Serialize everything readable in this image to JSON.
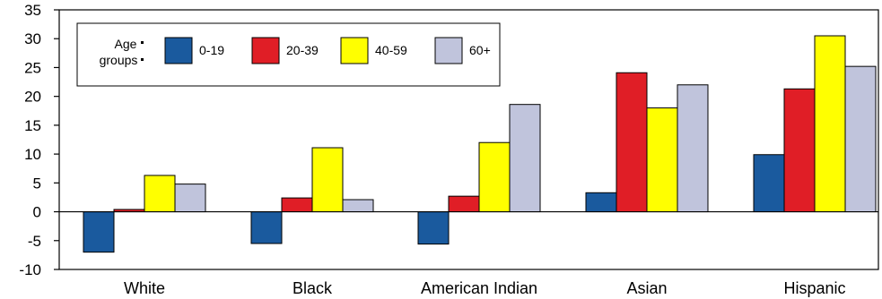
{
  "chart_data": {
    "type": "bar",
    "categories": [
      "White",
      "Black",
      "American Indian",
      "Asian",
      "Hispanic"
    ],
    "series": [
      {
        "name": "0-19",
        "color": "#1a5a9e",
        "values": [
          -7.0,
          -5.5,
          -5.6,
          3.3,
          9.9
        ]
      },
      {
        "name": "20-39",
        "color": "#e01e26",
        "values": [
          0.4,
          2.4,
          2.7,
          24.1,
          21.3
        ]
      },
      {
        "name": "40-59",
        "color": "#ffff00",
        "values": [
          6.3,
          11.1,
          12.0,
          18.0,
          30.5
        ]
      },
      {
        "name": "60+",
        "color": "#c0c4dc",
        "values": [
          4.8,
          2.1,
          18.6,
          22.0,
          25.2
        ]
      }
    ],
    "yticks": [
      "35",
      "30",
      "25",
      "20",
      "15",
      "10",
      "5",
      "0",
      "-5",
      "-10"
    ],
    "ylim": [
      -10,
      35
    ],
    "legend": {
      "title_line1": "Age",
      "title_line2": "groups",
      "position": "top-left"
    },
    "grid": false
  }
}
